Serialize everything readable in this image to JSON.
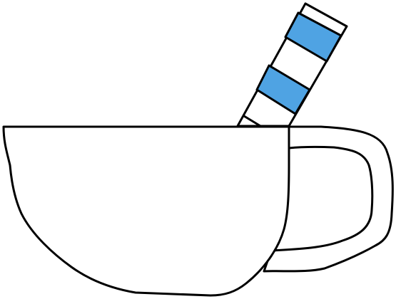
{
  "scene": {
    "background_color": "#ffffff",
    "outline_color": "#000000",
    "cup": {
      "icon": "cup-icon",
      "fill_color": "#ffffff"
    },
    "handle": {
      "icon": "cup-handle-icon"
    },
    "straw": {
      "icon": "striped-straw-icon",
      "stripe_color": "#4fa3e3",
      "base_color": "#ffffff"
    }
  }
}
